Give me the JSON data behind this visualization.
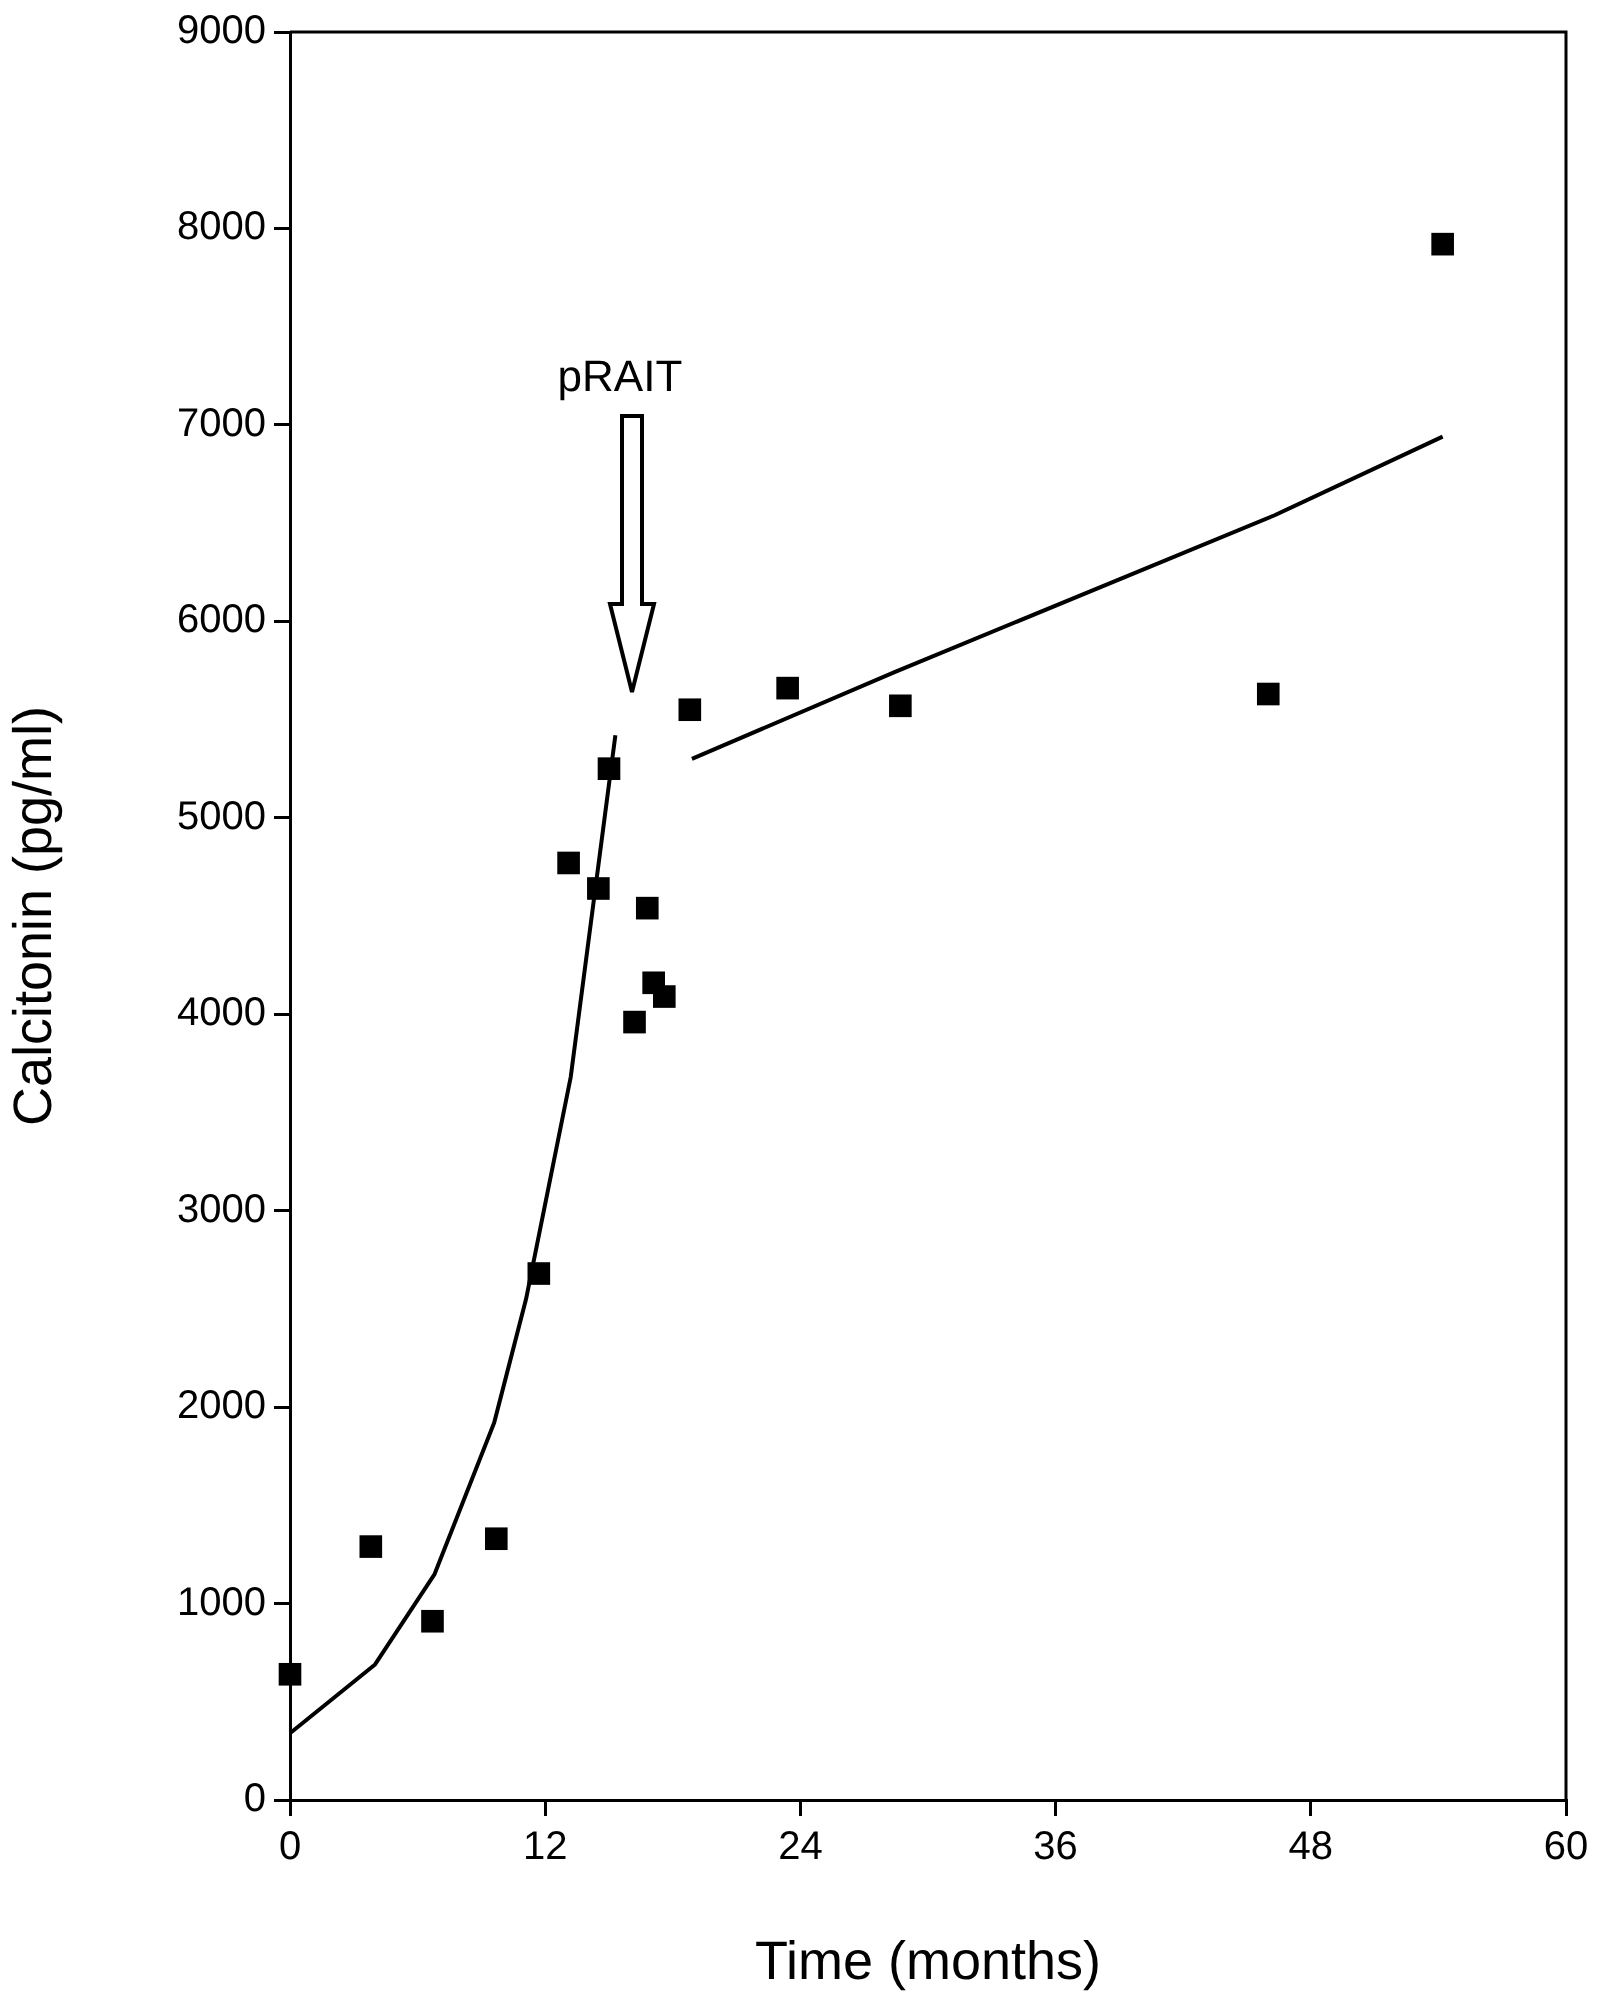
{
  "chart_data": {
    "type": "scatter",
    "xlabel": "Time (months)",
    "ylabel": "Calcitonin (pg/ml)",
    "xlim": [
      0,
      60
    ],
    "xticks": [
      0,
      12,
      24,
      36,
      48,
      60
    ],
    "ylim": [
      0,
      9000
    ],
    "yticks": [
      0,
      1000,
      2000,
      3000,
      4000,
      5000,
      6000,
      7000,
      8000,
      9000
    ],
    "grid": false,
    "legend": false,
    "marker": "square",
    "series": [
      {
        "color": "#000000",
        "x": [
          0,
          3.8,
          6.7,
          9.7,
          11.7,
          13.1,
          14.5,
          15.0,
          16.2,
          16.8,
          17.1,
          17.6,
          18.8,
          23.4,
          28.7,
          46.0,
          54.2
        ],
        "values": [
          640,
          1290,
          910,
          1330,
          2680,
          4770,
          4640,
          5250,
          3960,
          4540,
          4160,
          4090,
          5550,
          5660,
          5570,
          5630,
          7920
        ]
      },
      {
        "type": "line",
        "color": "#000000",
        "marker": "none",
        "line_style": "solid",
        "x": [
          0,
          4.0,
          6.8,
          9.6,
          11.1,
          13.2,
          15.3
        ],
        "values": [
          340,
          690,
          1150,
          1920,
          2550,
          3680,
          5420
        ]
      },
      {
        "type": "line",
        "color": "#000000",
        "marker": "none",
        "line_style": "solid",
        "x": [
          18.9,
          28.4,
          46.3,
          54.2
        ],
        "values": [
          5300,
          5740,
          6540,
          6940
        ]
      }
    ],
    "annotations": [
      "pRAIT"
    ]
  }
}
